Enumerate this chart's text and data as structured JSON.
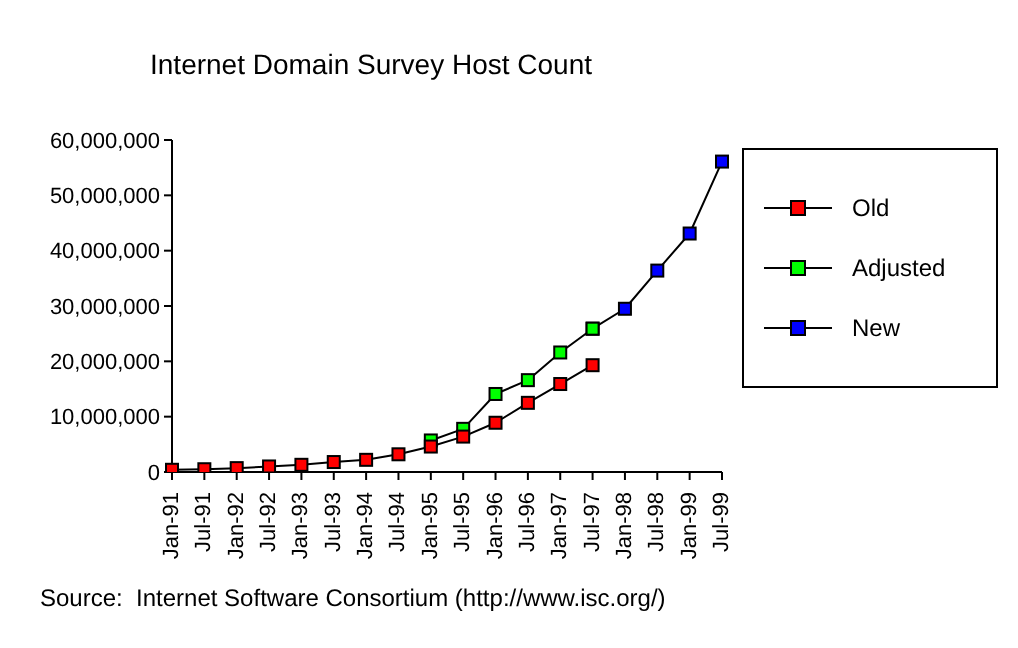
{
  "chart_data": {
    "type": "line",
    "title": "Internet Domain Survey Host Count",
    "categories": [
      "Jan-91",
      "Jul-91",
      "Jan-92",
      "Jul-92",
      "Jan-93",
      "Jul-93",
      "Jan-94",
      "Jul-94",
      "Jan-95",
      "Jul-95",
      "Jan-96",
      "Jul-96",
      "Jan-97",
      "Jul-97",
      "Jan-98",
      "Jul-98",
      "Jan-99",
      "Jul-99"
    ],
    "series": [
      {
        "name": "Old",
        "color": "#ff0000",
        "values": [
          400000,
          500000,
          700000,
          1000000,
          1300000,
          1800000,
          2200000,
          3200000,
          4600000,
          6400000,
          8900000,
          12500000,
          15900000,
          19300000,
          null,
          null,
          null,
          null
        ]
      },
      {
        "name": "Adjusted",
        "color": "#00ff00",
        "values": [
          null,
          null,
          null,
          null,
          null,
          null,
          null,
          null,
          5700000,
          7800000,
          14100000,
          16600000,
          21600000,
          25900000,
          null,
          null,
          null,
          null
        ]
      },
      {
        "name": "New",
        "color": "#0000ff",
        "values": [
          null,
          null,
          null,
          null,
          null,
          null,
          null,
          null,
          null,
          null,
          null,
          null,
          null,
          25900000,
          29500000,
          36400000,
          43100000,
          56100000
        ]
      }
    ],
    "ylim": [
      0,
      60000000
    ],
    "yticks": [
      0,
      {
        "value": 10000000,
        "label": "10,000,000"
      },
      {
        "value": 20000000,
        "label": "20,000,000"
      },
      {
        "value": 30000000,
        "label": "30,000,000"
      },
      {
        "value": 40000000,
        "label": "40,000,000"
      },
      {
        "value": 50000000,
        "label": "50,000,000"
      },
      {
        "value": 60000000,
        "label": "60,000,000"
      }
    ],
    "grid": false,
    "legend": "right",
    "marker": "square",
    "line_style": "solid",
    "annotations": [
      "Source:  Internet Software Consortium (http://www.isc.org/)"
    ]
  }
}
